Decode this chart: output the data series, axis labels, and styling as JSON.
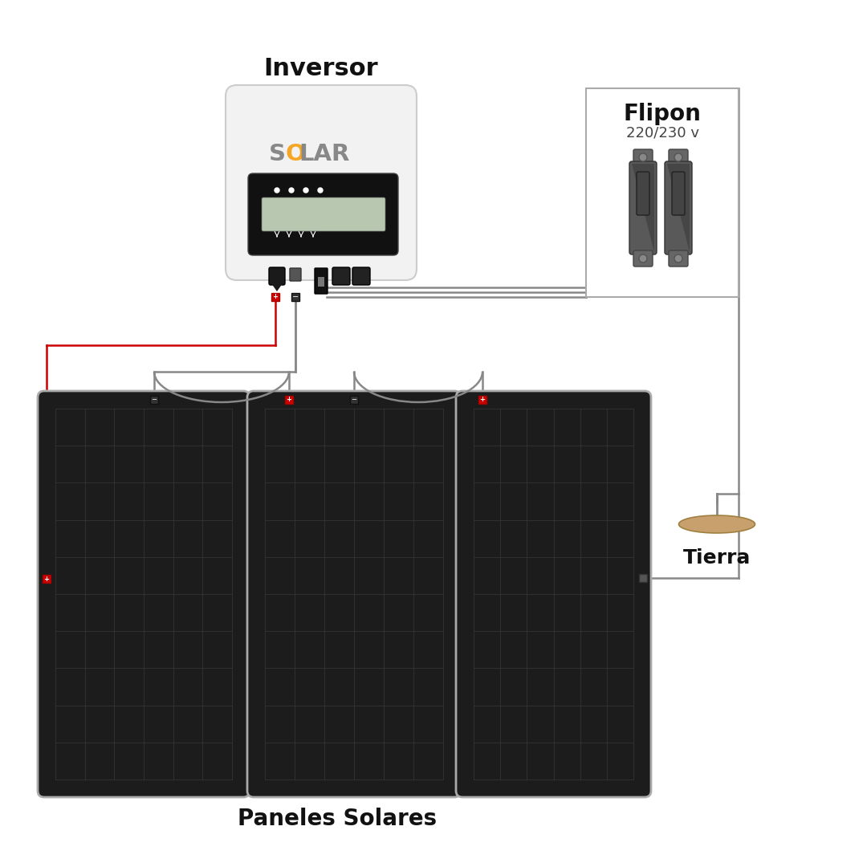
{
  "title": "Inversor",
  "flipon_title": "Flipon",
  "flipon_subtitle": "220/230 v",
  "panel_label": "Paneles Solares",
  "tierra_label": "Tierra",
  "bg_color": "#ffffff",
  "inversor_body_color": "#f2f2f2",
  "inversor_border_color": "#cccccc",
  "panel_body_color": "#1a1a1a",
  "panel_border_color": "#999999",
  "panel_grid_color": "#333333",
  "wire_color": "#888888",
  "wire_red": "#cc0000",
  "solar_orange": "#f5a623",
  "solar_gray": "#888888",
  "tierra_color": "#c8a06e",
  "flipon_body": "#555555",
  "flipon_dark": "#3a3a3a"
}
